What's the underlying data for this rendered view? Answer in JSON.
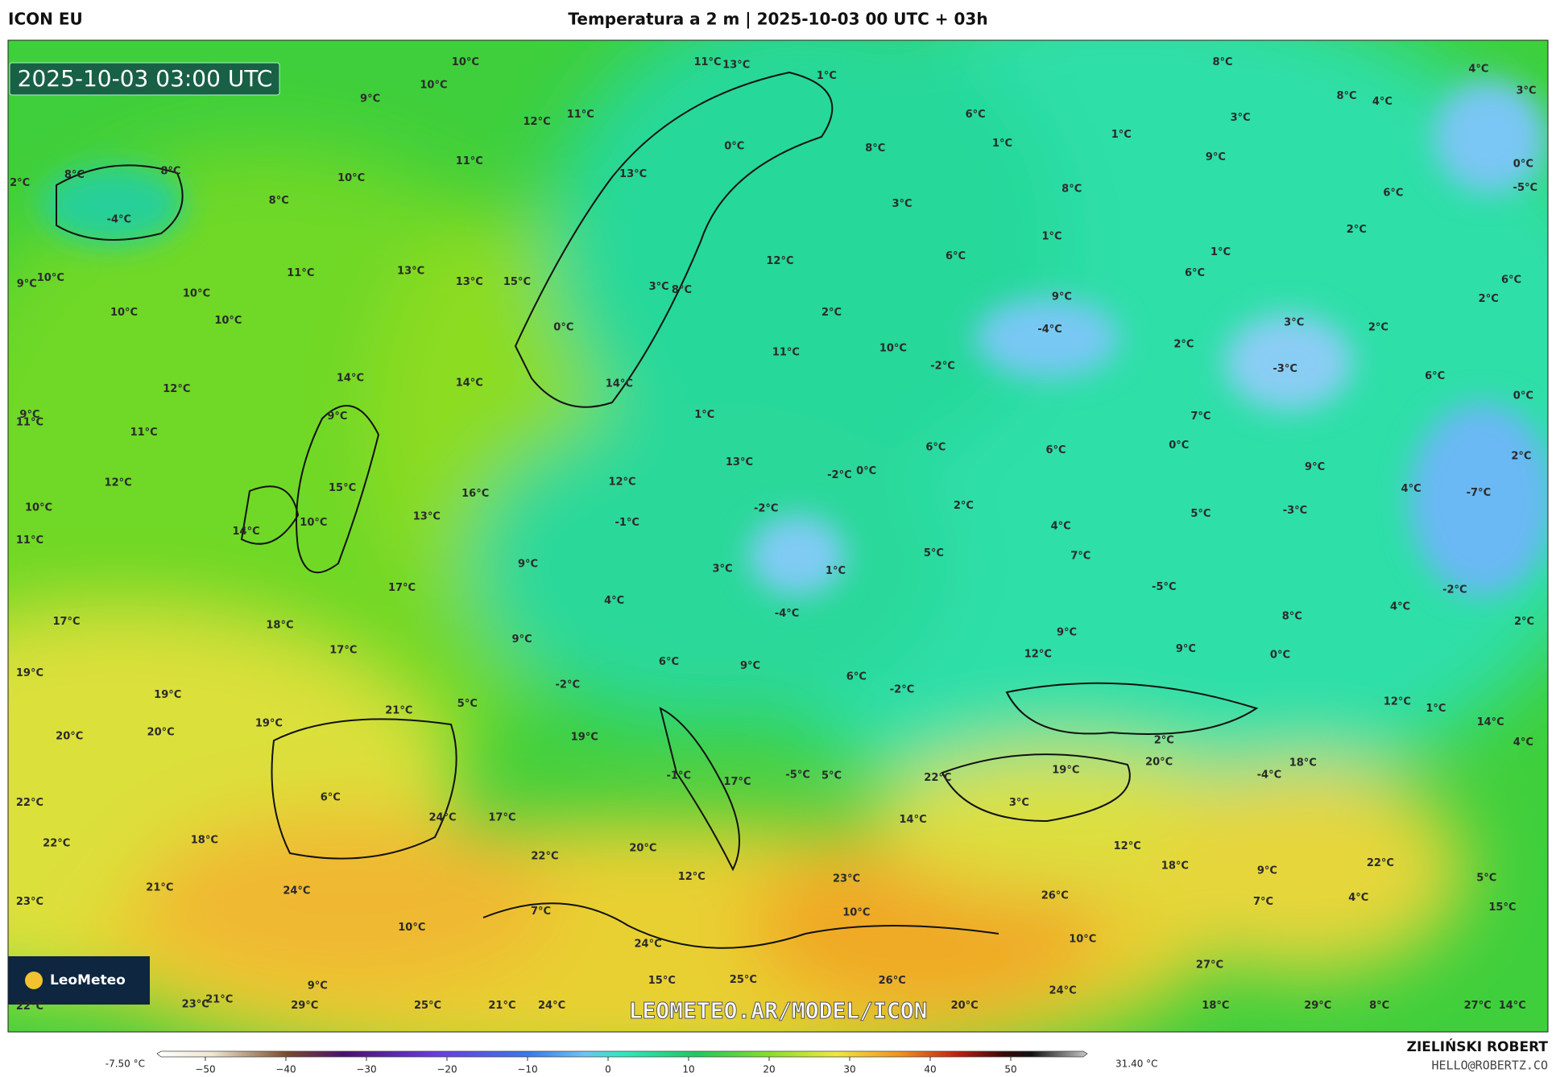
{
  "header": {
    "model": "ICON EU",
    "title": "Temperatura a 2 m | 2025-10-03 00 UTC + 03h"
  },
  "map": {
    "timestamp": "2025-10-03 03:00 UTC",
    "watermark": "LEOMETEO.AR/MODEL/ICON",
    "logo": "LeoMeteo",
    "labels": [
      "10°C",
      "11°C",
      "13°C",
      "1°C",
      "8°C",
      "4°C",
      "3°C",
      "8°C",
      "4°C",
      "10°C",
      "9°C",
      "12°C",
      "11°C",
      "6°C",
      "3°C",
      "0°C",
      "8°C",
      "1°C",
      "1°C",
      "9°C",
      "0°C",
      "-5°C",
      "11°C",
      "2°C",
      "8°C",
      "8°C",
      "10°C",
      "13°C",
      "8°C",
      "6°C",
      "8°C",
      "3°C",
      "-4°C",
      "1°C",
      "2°C",
      "12°C",
      "6°C",
      "1°C",
      "6°C",
      "6°C",
      "11°C",
      "13°C",
      "9°C",
      "10°C",
      "13°C",
      "15°C",
      "3°C",
      "8°C",
      "9°C",
      "2°C",
      "10°C",
      "10°C",
      "10°C",
      "0°C",
      "2°C",
      "-4°C",
      "3°C",
      "2°C",
      "11°C",
      "10°C",
      "2°C",
      "-2°C",
      "-3°C",
      "6°C",
      "14°C",
      "14°C",
      "14°C",
      "12°C",
      "0°C",
      "9°C",
      "11°C",
      "9°C",
      "1°C",
      "7°C",
      "11°C",
      "6°C",
      "0°C",
      "2°C",
      "6°C",
      "0°C",
      "-2°C",
      "9°C",
      "13°C",
      "12°C",
      "15°C",
      "16°C",
      "12°C",
      "4°C",
      "-7°C",
      "10°C",
      "-2°C",
      "2°C",
      "-3°C",
      "5°C",
      "13°C",
      "10°C",
      "-1°C",
      "14°C",
      "4°C",
      "11°C",
      "5°C",
      "7°C",
      "9°C",
      "3°C",
      "1°C",
      "-5°C",
      "-2°C",
      "17°C",
      "4°C",
      "4°C",
      "-4°C",
      "8°C",
      "17°C",
      "18°C",
      "2°C",
      "9°C",
      "9°C",
      "17°C",
      "9°C",
      "12°C",
      "6°C",
      "9°C",
      "0°C",
      "19°C",
      "6°C",
      "-2°C",
      "-2°C",
      "19°C",
      "5°C",
      "12°C",
      "1°C",
      "21°C",
      "19°C",
      "14°C",
      "20°C",
      "20°C",
      "19°C",
      "2°C",
      "4°C",
      "20°C",
      "18°C",
      "19°C",
      "-5°C",
      "5°C",
      "-1°C",
      "17°C",
      "22°C",
      "-4°C",
      "22°C",
      "6°C",
      "3°C",
      "24°C",
      "17°C",
      "14°C",
      "22°C",
      "18°C",
      "20°C",
      "12°C",
      "22°C",
      "18°C",
      "22°C",
      "12°C",
      "9°C",
      "23°C",
      "5°C",
      "23°C",
      "21°C",
      "24°C",
      "26°C",
      "4°C",
      "7°C",
      "7°C",
      "15°C",
      "10°C",
      "10°C",
      "10°C",
      "24°C",
      "27°C",
      "15°C",
      "25°C",
      "26°C",
      "9°C",
      "24°C",
      "22°C",
      "23°C",
      "21°C",
      "29°C",
      "25°C",
      "21°C",
      "24°C",
      "20°C",
      "18°C",
      "29°C",
      "8°C",
      "27°C",
      "14°C"
    ]
  },
  "colorbar": {
    "min_label": "-7.50 °C",
    "max_label": "31.40 °C",
    "ticks": [
      {
        "value": -50,
        "label": "−50"
      },
      {
        "value": -40,
        "label": "−40"
      },
      {
        "value": -30,
        "label": "−30"
      },
      {
        "value": -20,
        "label": "−20"
      },
      {
        "value": -10,
        "label": "−10"
      },
      0,
      10,
      20,
      30,
      40,
      50
    ]
  },
  "credits": {
    "name": "ZIELIŃSKI ROBERT",
    "email": "HELLO@ROBERTZ.CO"
  }
}
